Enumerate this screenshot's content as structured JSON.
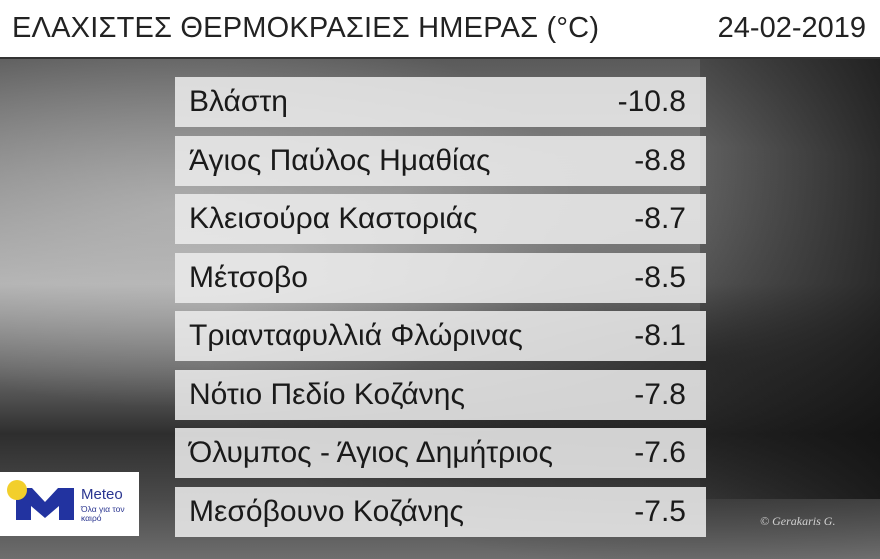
{
  "header": {
    "title": "ΕΛΑΧΙΣΤΕΣ ΘΕΡΜΟΚΡΑΣΙΕΣ ΗΜΕΡΑΣ (°C)",
    "date": "24-02-2019"
  },
  "rows": [
    {
      "station": "Βλάστη",
      "temp": "-10.8"
    },
    {
      "station": "Άγιος Παύλος Ημαθίας",
      "temp": "-8.8"
    },
    {
      "station": "Κλεισούρα Καστοριάς",
      "temp": "-8.7"
    },
    {
      "station": "Μέτσοβο",
      "temp": "-8.5"
    },
    {
      "station": "Τριανταφυλλιά Φλώρινας",
      "temp": "-8.1"
    },
    {
      "station": "Νότιο Πεδίο Κοζάνης",
      "temp": "-7.8"
    },
    {
      "station": "Όλυμπος - Άγιος Δημήτριος",
      "temp": "-7.6"
    },
    {
      "station": "Μεσόβουνο Κοζάνης",
      "temp": "-7.5"
    }
  ],
  "logo": {
    "brand": "Meteo",
    "tagline": "Όλα για τον καιρό",
    "colors": {
      "blue": "#2233a0",
      "sun": "#f2cf2b"
    }
  },
  "watermark": "© Gerakaris G."
}
